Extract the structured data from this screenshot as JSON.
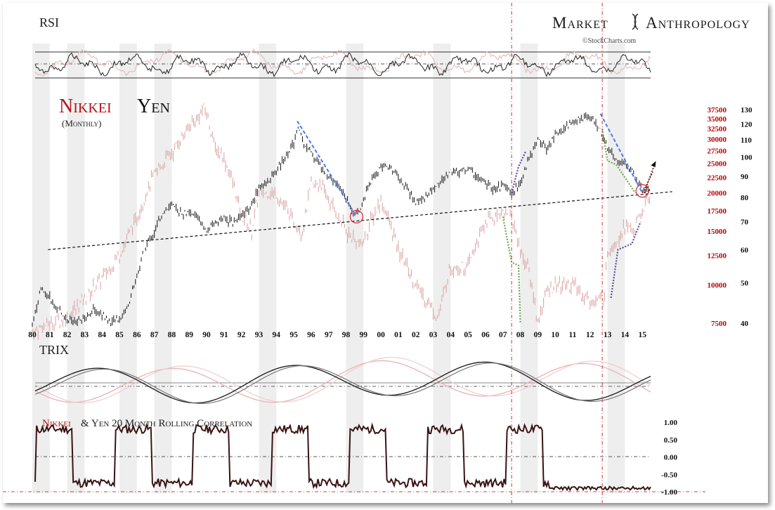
{
  "brand": {
    "left": "Market",
    "right": "Anthropology",
    "credit": "©StockCharts.com"
  },
  "colors": {
    "yen": "#111111",
    "nikkei": "#d9a0a0",
    "nikkei_title": "#b3131b",
    "axis_red": "#b00000",
    "shade": "#eeeeee"
  },
  "chart_data": [
    {
      "type": "line",
      "panel": "rsi",
      "title": "RSI",
      "lines": [
        {
          "name": "upper",
          "value": 70
        },
        {
          "name": "middle",
          "value": 50
        },
        {
          "name": "lower",
          "value": 30
        }
      ]
    },
    {
      "type": "line",
      "panel": "price",
      "title_part1": "Nikkei",
      "title_part2": "Yen",
      "subtitle": "(Monthly)",
      "x_tick_labels": [
        "80",
        "81",
        "82",
        "83",
        "84",
        "85",
        "86",
        "87",
        "88",
        "89",
        "90",
        "91",
        "92",
        "93",
        "94",
        "95",
        "96",
        "97",
        "98",
        "99",
        "00",
        "01",
        "02",
        "03",
        "04",
        "05",
        "06",
        "07",
        "08",
        "09",
        "10",
        "11",
        "12",
        "13",
        "14",
        "15"
      ],
      "yen_axis": {
        "labels": [
          "130",
          "120",
          "110",
          "100",
          "90",
          "80",
          "70",
          "60",
          "50",
          "40"
        ],
        "values": [
          130,
          120,
          110,
          100,
          90,
          80,
          70,
          60,
          50,
          40
        ]
      },
      "nikkei_axis": {
        "labels": [
          "37500",
          "35000",
          "32500",
          "30000",
          "27500",
          "25000",
          "22500",
          "20000",
          "17500",
          "15000",
          "12500",
          "10000",
          "7500"
        ],
        "values": [
          37500,
          35000,
          32500,
          30000,
          27500,
          25000,
          22500,
          20000,
          17500,
          15000,
          12500,
          10000,
          7500
        ]
      },
      "series": [
        {
          "name": "Yen",
          "x": [
            1980.0,
            1980.5,
            1981.0,
            1981.5,
            1982.0,
            1982.5,
            1983.0,
            1983.5,
            1984.0,
            1984.5,
            1985.0,
            1985.5,
            1986.0,
            1986.5,
            1987.0,
            1987.5,
            1988.0,
            1988.5,
            1989.0,
            1989.5,
            1990.0,
            1990.5,
            1991.0,
            1991.5,
            1992.0,
            1992.5,
            1993.0,
            1993.5,
            1994.0,
            1994.5,
            1995.0,
            1995.3,
            1995.5,
            1996.0,
            1996.5,
            1997.0,
            1997.5,
            1998.0,
            1998.5,
            1998.8,
            1999.0,
            1999.5,
            2000.0,
            2000.5,
            2001.0,
            2001.5,
            2002.0,
            2002.5,
            2003.0,
            2003.5,
            2004.0,
            2004.5,
            2005.0,
            2005.5,
            2006.0,
            2006.5,
            2007.0,
            2007.5,
            2008.0,
            2008.5,
            2009.0,
            2009.5,
            2010.0,
            2010.5,
            2011.0,
            2011.5,
            2012.0,
            2012.5,
            2013.0,
            2013.5,
            2014.0,
            2014.5,
            2015.0,
            2015.5
          ],
          "values": [
            40,
            48,
            46,
            43,
            41,
            40,
            41,
            43,
            42,
            40,
            41,
            44,
            52,
            61,
            66,
            74,
            76,
            74,
            73,
            72,
            66,
            70,
            71,
            70,
            72,
            76,
            84,
            87,
            92,
            100,
            108,
            118,
            110,
            102,
            96,
            90,
            86,
            80,
            73,
            74,
            80,
            88,
            95,
            95,
            90,
            84,
            78,
            80,
            84,
            88,
            93,
            92,
            94,
            90,
            86,
            84,
            85,
            82,
            86,
            100,
            110,
            105,
            112,
            117,
            121,
            124,
            125,
            118,
            105,
            98,
            96,
            92,
            84,
            83
          ]
        },
        {
          "name": "Nikkei",
          "x": [
            1980.0,
            1981.0,
            1982.0,
            1983.0,
            1984.0,
            1985.0,
            1986.0,
            1987.0,
            1988.0,
            1989.0,
            1989.9,
            1990.5,
            1991.0,
            1992.0,
            1992.6,
            1993.0,
            1994.0,
            1995.0,
            1995.5,
            1996.0,
            1996.5,
            1997.0,
            1998.0,
            1998.8,
            1999.0,
            2000.0,
            2000.5,
            2001.0,
            2002.0,
            2003.3,
            2004.0,
            2005.0,
            2006.0,
            2007.0,
            2007.5,
            2008.0,
            2008.5,
            2009.0,
            2009.5,
            2010.0,
            2011.0,
            2012.0,
            2012.8,
            2013.0,
            2013.5,
            2014.0,
            2014.5,
            2015.0,
            2015.5
          ],
          "values": [
            7000,
            7500,
            7800,
            9000,
            10500,
            12500,
            16500,
            23000,
            27000,
            33000,
            38000,
            28000,
            26000,
            17000,
            15000,
            20000,
            20000,
            16000,
            15000,
            21000,
            21500,
            19000,
            15000,
            13500,
            14000,
            19000,
            16000,
            13000,
            10000,
            7800,
            11500,
            11500,
            16000,
            17500,
            16500,
            13000,
            11000,
            7500,
            9500,
            10000,
            10000,
            8800,
            9000,
            13000,
            14000,
            15500,
            15000,
            17500,
            20000
          ]
        }
      ],
      "annotations": {
        "trend_start": {
          "x": 1980.9,
          "y": 60
        },
        "trend_end": {
          "x": 2015.5,
          "y": 82
        },
        "circles": [
          {
            "x": 1998.6,
            "y": 72
          },
          {
            "x": 2015.0,
            "y": 83
          }
        ]
      },
      "shaded_year_ranges": [
        [
          1980,
          1981
        ],
        [
          1982,
          1983
        ],
        [
          1985,
          1986
        ],
        [
          1987,
          1988
        ],
        [
          1993,
          1994
        ],
        [
          1998,
          1999
        ],
        [
          2003,
          2004
        ],
        [
          2008,
          2009
        ],
        [
          2013,
          2014
        ]
      ],
      "event_lines": [
        2007.5,
        2012.7
      ]
    },
    {
      "type": "line",
      "panel": "trix",
      "title": "TRIX"
    },
    {
      "type": "line",
      "panel": "correlation",
      "title_part1": "Nikkei",
      "title_part2": " & Yen 20 Month Rolling Correlation",
      "y_labels": [
        "1.00",
        "0.50",
        "0.00",
        "-0.50",
        "-1.00"
      ],
      "ylim": [
        -1.0,
        1.0
      ]
    }
  ]
}
